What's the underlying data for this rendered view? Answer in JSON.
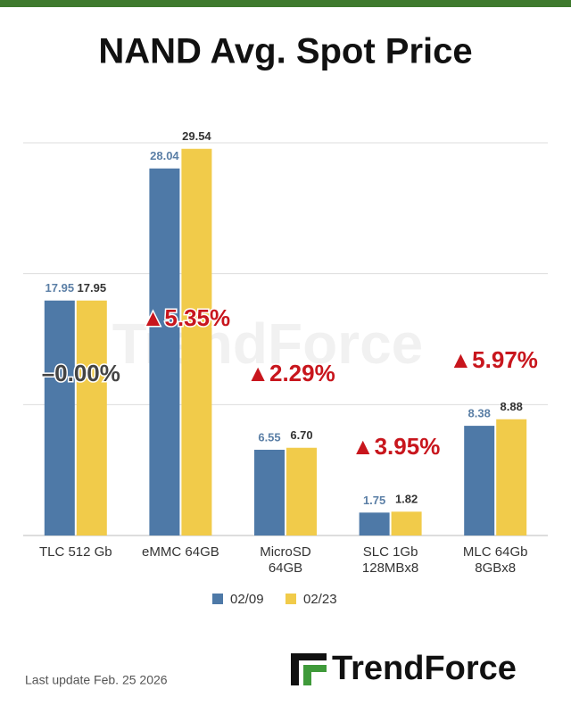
{
  "chart_data": {
    "type": "bar",
    "title": "NAND Avg. Spot Price",
    "categories": [
      [
        "TLC 512 Gb"
      ],
      [
        "eMMC 64GB"
      ],
      [
        "MicroSD",
        "64GB"
      ],
      [
        "SLC 1Gb",
        "128MBx8"
      ],
      [
        "MLC 64Gb",
        "8GBx8"
      ]
    ],
    "series": [
      {
        "name": "02/09",
        "color": "#4e79a7",
        "values": [
          17.95,
          28.04,
          6.55,
          1.75,
          8.38
        ],
        "value_labels": [
          "17.95",
          "28.04",
          "6.55",
          "1.75",
          "8.38"
        ]
      },
      {
        "name": "02/23",
        "color": "#f1cb4a",
        "values": [
          17.95,
          29.54,
          6.7,
          1.82,
          8.88
        ],
        "value_labels": [
          "17.95",
          "29.54",
          "6.70",
          "1.82",
          "8.88"
        ]
      }
    ],
    "annotations": [
      "–0.00%",
      "▲5.35%",
      "▲2.29%",
      "▲3.95%",
      "▲5.97%"
    ],
    "ylim": [
      0,
      30
    ],
    "yticks": [
      0,
      10,
      20,
      30
    ],
    "grid": true
  },
  "footer": {
    "update": "Last update Feb. 25  2026",
    "logo": "TrendForce",
    "watermark": "TrendForce"
  }
}
